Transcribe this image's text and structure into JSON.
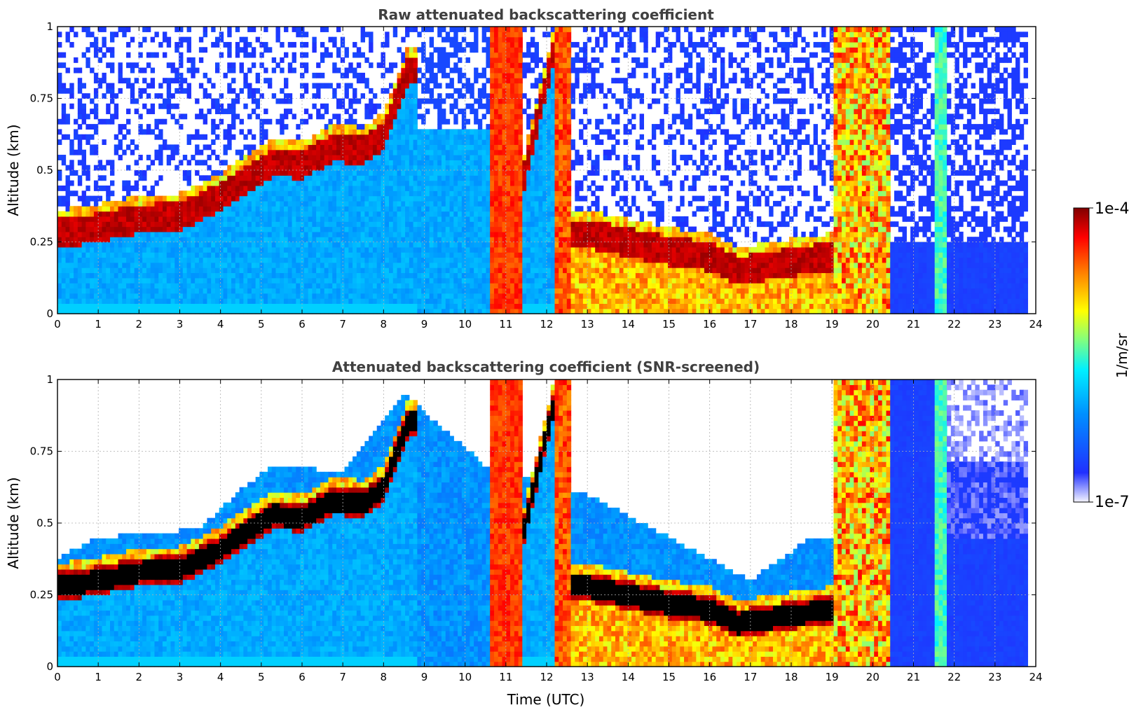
{
  "chart_data": [
    {
      "type": "heatmap",
      "title": "Raw attenuated backscattering coefficient",
      "xlabel": "",
      "ylabel": "Altitude (km)",
      "xlim": [
        0,
        24
      ],
      "ylim": [
        0,
        1
      ],
      "xticks": [
        "0",
        "1",
        "2",
        "3",
        "4",
        "5",
        "6",
        "7",
        "8",
        "9",
        "10",
        "11",
        "12",
        "13",
        "14",
        "15",
        "16",
        "17",
        "18",
        "19",
        "20",
        "21",
        "22",
        "23",
        "24"
      ],
      "yticks": [
        "0",
        "0.25",
        "0.5",
        "0.75",
        "1"
      ],
      "grid": true,
      "colormap": "jet (log scale)",
      "color_range": [
        "1e-7",
        "1e-4"
      ],
      "boundary_layer_top_km": [
        [
          0,
          0.28
        ],
        [
          1,
          0.3
        ],
        [
          2,
          0.33
        ],
        [
          3,
          0.34
        ],
        [
          3.9,
          0.4
        ],
        [
          5.3,
          0.53
        ],
        [
          6,
          0.52
        ],
        [
          6.8,
          0.58
        ],
        [
          7.5,
          0.57
        ],
        [
          8,
          0.62
        ],
        [
          8.6,
          0.85
        ]
      ],
      "low_cloud_base_km": [
        [
          13,
          0.28
        ],
        [
          14,
          0.25
        ],
        [
          15,
          0.22
        ],
        [
          16,
          0.2
        ],
        [
          16.7,
          0.15
        ],
        [
          18,
          0.18
        ],
        [
          19,
          0.2
        ]
      ],
      "strong_signal_periods_utc": [
        [
          10.6,
          11.4
        ],
        [
          12.2,
          12.6
        ],
        [
          19.0,
          20.4
        ]
      ]
    },
    {
      "type": "heatmap",
      "title": "Attenuated backscattering coefficient (SNR-screened)",
      "xlabel": "Time (UTC)",
      "ylabel": "Altitude (km)",
      "xlim": [
        0,
        24
      ],
      "ylim": [
        0,
        1
      ],
      "xticks": [
        "0",
        "1",
        "2",
        "3",
        "4",
        "5",
        "6",
        "7",
        "8",
        "9",
        "10",
        "11",
        "12",
        "13",
        "14",
        "15",
        "16",
        "17",
        "18",
        "19",
        "20",
        "21",
        "22",
        "23",
        "24"
      ],
      "yticks": [
        "0",
        "0.25",
        "0.5",
        "0.75",
        "1"
      ],
      "grid": true,
      "colormap": "jet (log scale)",
      "color_range": [
        "1e-7",
        "1e-4"
      ],
      "screened_signal_top_km": [
        [
          0,
          0.38
        ],
        [
          1,
          0.45
        ],
        [
          2,
          0.46
        ],
        [
          3.5,
          0.48
        ],
        [
          4.5,
          0.62
        ],
        [
          5.3,
          0.7
        ],
        [
          7,
          0.68
        ],
        [
          8.5,
          0.95
        ],
        [
          10.5,
          0.7
        ],
        [
          13,
          0.6
        ],
        [
          15,
          0.45
        ],
        [
          17,
          0.3
        ],
        [
          18.5,
          0.45
        ]
      ]
    }
  ],
  "colorbar": {
    "label": "1/m/sr",
    "max_label": "1e-4",
    "min_label": "1e-7",
    "colors": [
      "#eeeeff",
      "#0000ff",
      "#00a0ff",
      "#00ffff",
      "#80ff80",
      "#ffff00",
      "#ff8000",
      "#ff0000",
      "#800000"
    ]
  }
}
